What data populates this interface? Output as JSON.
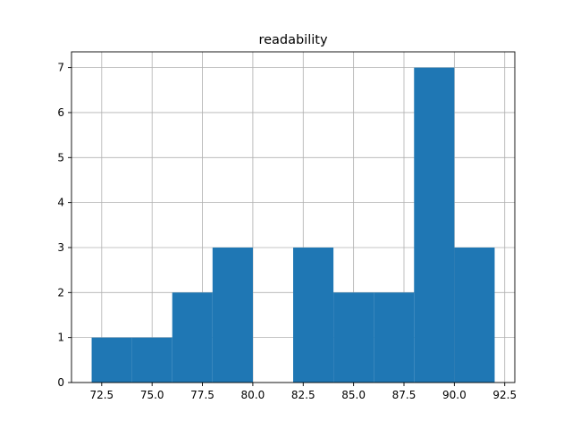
{
  "chart_data": {
    "type": "bar",
    "title": "readability",
    "xlabel": "",
    "ylabel": "",
    "xlim": [
      71.0,
      93.0
    ],
    "ylim": [
      0,
      7.35
    ],
    "grid": true,
    "bar_color": "#1f77b4",
    "bins": [
      {
        "x0": 72.0,
        "x1": 74.0,
        "count": 1
      },
      {
        "x0": 74.0,
        "x1": 76.0,
        "count": 1
      },
      {
        "x0": 76.0,
        "x1": 78.0,
        "count": 2
      },
      {
        "x0": 78.0,
        "x1": 80.0,
        "count": 3
      },
      {
        "x0": 80.0,
        "x1": 82.0,
        "count": 0
      },
      {
        "x0": 82.0,
        "x1": 84.0,
        "count": 3
      },
      {
        "x0": 84.0,
        "x1": 86.0,
        "count": 2
      },
      {
        "x0": 86.0,
        "x1": 88.0,
        "count": 2
      },
      {
        "x0": 88.0,
        "x1": 90.0,
        "count": 7
      },
      {
        "x0": 90.0,
        "x1": 92.0,
        "count": 3
      }
    ],
    "x_ticks": [
      {
        "value": 72.5,
        "label": "72.5"
      },
      {
        "value": 75.0,
        "label": "75.0"
      },
      {
        "value": 77.5,
        "label": "77.5"
      },
      {
        "value": 80.0,
        "label": "80.0"
      },
      {
        "value": 82.5,
        "label": "82.5"
      },
      {
        "value": 85.0,
        "label": "85.0"
      },
      {
        "value": 87.5,
        "label": "87.5"
      },
      {
        "value": 90.0,
        "label": "90.0"
      },
      {
        "value": 92.5,
        "label": "92.5"
      }
    ],
    "y_ticks": [
      {
        "value": 0,
        "label": "0"
      },
      {
        "value": 1,
        "label": "1"
      },
      {
        "value": 2,
        "label": "2"
      },
      {
        "value": 3,
        "label": "3"
      },
      {
        "value": 4,
        "label": "4"
      },
      {
        "value": 5,
        "label": "5"
      },
      {
        "value": 6,
        "label": "6"
      },
      {
        "value": 7,
        "label": "7"
      }
    ]
  }
}
